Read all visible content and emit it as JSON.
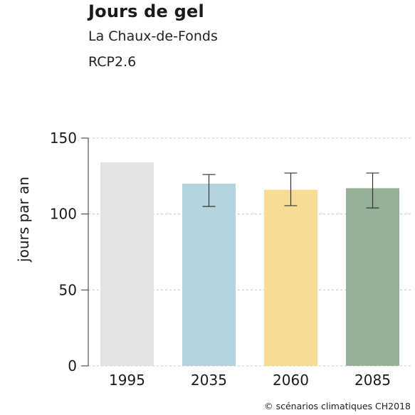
{
  "header": {
    "title": "Jours de gel",
    "subtitle_location": "La Chaux-de-Fonds",
    "subtitle_scenario": "RCP2.6"
  },
  "footer": {
    "credit": "© scénarios climatiques CH2018"
  },
  "chart_data": {
    "type": "bar",
    "title": "Jours de gel",
    "xlabel": "",
    "ylabel": "jours par an",
    "ylim": [
      0,
      150
    ],
    "yticks": [
      0,
      50,
      100,
      150
    ],
    "grid": true,
    "categories": [
      "1995",
      "2035",
      "2060",
      "2085"
    ],
    "values": [
      134,
      120,
      116,
      117
    ],
    "error_low": [
      null,
      105,
      105.5,
      104
    ],
    "error_high": [
      null,
      126,
      127,
      127
    ],
    "colors": [
      "#e3e3e3",
      "#b5d5de",
      "#f8dc95",
      "#97b198"
    ]
  }
}
